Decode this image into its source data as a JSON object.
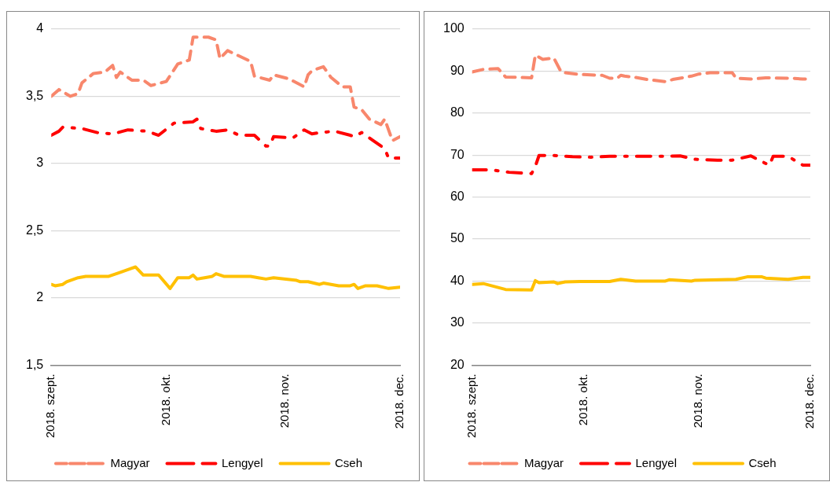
{
  "chart_data": [
    {
      "type": "line",
      "legend": "bottom",
      "grid": "y",
      "xlim": [
        "2018-09-01",
        "2018-12-01"
      ],
      "xticks": [
        {
          "value": "2018-09-01",
          "label": "2018. szept."
        },
        {
          "value": "2018-10-01",
          "label": "2018. okt."
        },
        {
          "value": "2018-11-01",
          "label": "2018. nov."
        },
        {
          "value": "2018-12-01",
          "label": "2018. dec."
        }
      ],
      "ylim": [
        1.5,
        4
      ],
      "yticks": [
        {
          "value": 1.5,
          "label": "1,5"
        },
        2,
        {
          "value": 2.5,
          "label": "2,5"
        },
        3,
        {
          "value": 3.5,
          "label": "3,5"
        },
        4
      ],
      "series": [
        {
          "name": "Magyar",
          "color": "#f8876c",
          "line_style": "dashed",
          "x": [
            "2018-09-01",
            "2018-09-03",
            "2018-09-06",
            "2018-09-08",
            "2018-09-09",
            "2018-09-12",
            "2018-09-15",
            "2018-09-17",
            "2018-09-18",
            "2018-09-19",
            "2018-09-22",
            "2018-09-25",
            "2018-09-27",
            "2018-10-01",
            "2018-10-04",
            "2018-10-07",
            "2018-10-08",
            "2018-10-12",
            "2018-10-14",
            "2018-10-15",
            "2018-10-17",
            "2018-10-23",
            "2018-10-24",
            "2018-10-28",
            "2018-10-29",
            "2018-11-02",
            "2018-11-06",
            "2018-11-07",
            "2018-11-08",
            "2018-11-11",
            "2018-11-13",
            "2018-11-16",
            "2018-11-18",
            "2018-11-19",
            "2018-11-21",
            "2018-11-23",
            "2018-11-26",
            "2018-11-27",
            "2018-11-29",
            "2018-12-01"
          ],
          "values": [
            3.5,
            3.55,
            3.5,
            3.52,
            3.6,
            3.67,
            3.68,
            3.73,
            3.64,
            3.68,
            3.62,
            3.62,
            3.58,
            3.61,
            3.74,
            3.77,
            3.94,
            3.94,
            3.92,
            3.78,
            3.84,
            3.76,
            3.65,
            3.62,
            3.66,
            3.63,
            3.57,
            3.66,
            3.69,
            3.72,
            3.64,
            3.57,
            3.57,
            3.42,
            3.4,
            3.33,
            3.29,
            3.33,
            3.17,
            3.2
          ]
        },
        {
          "name": "Lengyel",
          "color": "#ff0000",
          "line_style": "dashdot",
          "x": [
            "2018-09-01",
            "2018-09-03",
            "2018-09-04",
            "2018-09-09",
            "2018-09-13",
            "2018-09-17",
            "2018-09-21",
            "2018-09-26",
            "2018-09-29",
            "2018-10-03",
            "2018-10-08",
            "2018-10-09",
            "2018-10-10",
            "2018-10-14",
            "2018-10-17",
            "2018-10-20",
            "2018-10-24",
            "2018-10-27",
            "2018-10-28",
            "2018-10-29",
            "2018-11-03",
            "2018-11-06",
            "2018-11-08",
            "2018-11-10",
            "2018-11-14",
            "2018-11-18",
            "2018-11-19",
            "2018-11-21",
            "2018-11-24",
            "2018-11-27",
            "2018-11-28",
            "2018-12-01"
          ],
          "values": [
            3.21,
            3.24,
            3.27,
            3.26,
            3.23,
            3.22,
            3.25,
            3.24,
            3.21,
            3.3,
            3.31,
            3.33,
            3.26,
            3.24,
            3.25,
            3.21,
            3.21,
            3.13,
            3.13,
            3.2,
            3.19,
            3.25,
            3.22,
            3.23,
            3.24,
            3.21,
            3.2,
            3.23,
            3.17,
            3.11,
            3.04,
            3.04
          ]
        },
        {
          "name": "Cseh",
          "color": "#ffc000",
          "line_style": "solid",
          "x": [
            "2018-09-01",
            "2018-09-02",
            "2018-09-04",
            "2018-09-05",
            "2018-09-08",
            "2018-09-10",
            "2018-09-16",
            "2018-09-19",
            "2018-09-22",
            "2018-09-23",
            "2018-09-25",
            "2018-09-29",
            "2018-10-02",
            "2018-10-04",
            "2018-10-07",
            "2018-10-08",
            "2018-10-09",
            "2018-10-11",
            "2018-10-13",
            "2018-10-14",
            "2018-10-16",
            "2018-10-23",
            "2018-10-25",
            "2018-10-27",
            "2018-10-29",
            "2018-11-04",
            "2018-11-05",
            "2018-11-07",
            "2018-11-10",
            "2018-11-11",
            "2018-11-13",
            "2018-11-15",
            "2018-11-18",
            "2018-11-19",
            "2018-11-20",
            "2018-11-22",
            "2018-11-25",
            "2018-11-28",
            "2018-12-01"
          ],
          "values": [
            2.1,
            2.09,
            2.1,
            2.12,
            2.15,
            2.16,
            2.16,
            2.19,
            2.22,
            2.23,
            2.17,
            2.17,
            2.07,
            2.15,
            2.15,
            2.17,
            2.14,
            2.15,
            2.16,
            2.18,
            2.16,
            2.16,
            2.15,
            2.14,
            2.15,
            2.13,
            2.12,
            2.12,
            2.1,
            2.11,
            2.1,
            2.09,
            2.09,
            2.1,
            2.07,
            2.09,
            2.09,
            2.07,
            2.08
          ]
        }
      ]
    },
    {
      "type": "line",
      "legend": "bottom",
      "grid": "y",
      "xlim": [
        "2018-09-01",
        "2018-12-01"
      ],
      "xticks": [
        {
          "value": "2018-09-01",
          "label": "2018. szept."
        },
        {
          "value": "2018-10-01",
          "label": "2018. okt."
        },
        {
          "value": "2018-11-01",
          "label": "2018. nov."
        },
        {
          "value": "2018-12-01",
          "label": "2018. dec."
        }
      ],
      "ylim": [
        20,
        100
      ],
      "yticks": [
        20,
        30,
        40,
        50,
        60,
        70,
        80,
        90,
        100
      ],
      "series": [
        {
          "name": "Magyar",
          "color": "#f8876c",
          "line_style": "dashed",
          "x": [
            "2018-09-01",
            "2018-09-04",
            "2018-09-08",
            "2018-09-10",
            "2018-09-17",
            "2018-09-18",
            "2018-09-20",
            "2018-09-23",
            "2018-09-25",
            "2018-09-30",
            "2018-10-06",
            "2018-10-08",
            "2018-10-10",
            "2018-10-11",
            "2018-10-12",
            "2018-10-15",
            "2018-10-18",
            "2018-10-23",
            "2018-10-25",
            "2018-10-30",
            "2018-11-01",
            "2018-11-04",
            "2018-11-10",
            "2018-11-11",
            "2018-11-15",
            "2018-11-19",
            "2018-11-26",
            "2018-11-29",
            "2018-12-01"
          ],
          "values": [
            89.8,
            90.4,
            90.6,
            88.6,
            88.4,
            93.8,
            92.8,
            93.1,
            89.7,
            89.2,
            89.0,
            88.3,
            88.3,
            89.0,
            88.8,
            88.5,
            88.0,
            87.5,
            88.0,
            88.8,
            89.3,
            89.6,
            89.6,
            88.3,
            88.1,
            88.4,
            88.3,
            88.1,
            88.1
          ]
        },
        {
          "name": "Lengyel",
          "color": "#ff0000",
          "line_style": "dashdot",
          "x": [
            "2018-09-01",
            "2018-09-06",
            "2018-09-11",
            "2018-09-17",
            "2018-09-18",
            "2018-09-19",
            "2018-09-23",
            "2018-09-28",
            "2018-10-03",
            "2018-10-08",
            "2018-10-12",
            "2018-10-17",
            "2018-10-22",
            "2018-10-27",
            "2018-10-31",
            "2018-11-06",
            "2018-11-10",
            "2018-11-15",
            "2018-11-19",
            "2018-11-20",
            "2018-11-21",
            "2018-11-25",
            "2018-11-29",
            "2018-12-01"
          ],
          "values": [
            66.5,
            66.5,
            65.9,
            65.6,
            67.3,
            69.9,
            69.9,
            69.6,
            69.5,
            69.7,
            69.7,
            69.7,
            69.7,
            69.8,
            69.0,
            68.8,
            68.8,
            69.8,
            68.0,
            67.6,
            69.7,
            69.7,
            67.6,
            67.6
          ]
        },
        {
          "name": "Cseh",
          "color": "#ffc000",
          "line_style": "solid",
          "x": [
            "2018-09-01",
            "2018-09-04",
            "2018-09-07",
            "2018-09-10",
            "2018-09-17",
            "2018-09-18",
            "2018-09-19",
            "2018-09-23",
            "2018-09-24",
            "2018-09-26",
            "2018-09-30",
            "2018-10-08",
            "2018-10-11",
            "2018-10-15",
            "2018-10-23",
            "2018-10-24",
            "2018-10-30",
            "2018-10-31",
            "2018-11-11",
            "2018-11-14",
            "2018-11-18",
            "2018-11-19",
            "2018-11-25",
            "2018-11-29",
            "2018-12-01"
          ],
          "values": [
            39.2,
            39.4,
            38.7,
            38.0,
            37.9,
            40.1,
            39.6,
            39.8,
            39.4,
            39.8,
            39.9,
            39.9,
            40.4,
            40.0,
            40.0,
            40.3,
            40.0,
            40.2,
            40.4,
            41.0,
            41.0,
            40.7,
            40.4,
            40.9,
            40.9
          ]
        }
      ]
    }
  ]
}
